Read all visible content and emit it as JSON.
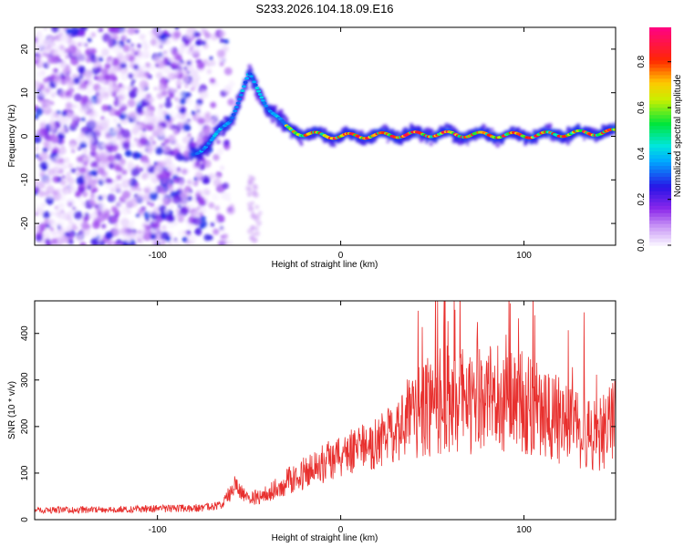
{
  "title": "S233.2026.104.18.09.E16",
  "chart_data": [
    {
      "type": "heatmap",
      "xlabel": "Height of straight line (km)",
      "ylabel": "Frequency (Hz)",
      "xlim": [
        -167,
        150
      ],
      "ylim": [
        -25,
        25
      ],
      "x_ticks": [
        -100,
        0,
        100
      ],
      "y_ticks": [
        -20,
        -10,
        0,
        10,
        20
      ],
      "colorbar": {
        "label": "Normalized spectral amplitude",
        "range": [
          0,
          0.95
        ],
        "ticks": [
          0.0,
          0.2,
          0.4,
          0.6,
          0.8
        ]
      },
      "ridge": [
        {
          "x": -80,
          "y": -4
        },
        {
          "x": -70,
          "y": -1
        },
        {
          "x": -60,
          "y": 4
        },
        {
          "x": -50,
          "y": 14
        },
        {
          "x": -40,
          "y": 7
        },
        {
          "x": -30,
          "y": 2
        },
        {
          "x": -20,
          "y": 0.5
        },
        {
          "x": 0,
          "y": 0
        },
        {
          "x": 50,
          "y": 0.5
        },
        {
          "x": 100,
          "y": 0.2
        },
        {
          "x": 150,
          "y": 1
        }
      ]
    },
    {
      "type": "line",
      "xlabel": "Height of straight line (km)",
      "ylabel": "SNR (10 * v/v)",
      "xlim": [
        -167,
        150
      ],
      "ylim": [
        0,
        470
      ],
      "x_ticks": [
        -100,
        0,
        100
      ],
      "y_ticks": [
        0,
        100,
        200,
        300,
        400
      ],
      "color": "#e8302e",
      "series": [
        {
          "name": "",
          "x": [
            -167,
            -120,
            -80,
            -65,
            -58,
            -50,
            -40,
            -30,
            -20,
            -10,
            0,
            10,
            20,
            30,
            40,
            50,
            60,
            70,
            80,
            90,
            100,
            110,
            120,
            130,
            140,
            150
          ],
          "y": [
            20,
            22,
            25,
            30,
            70,
            45,
            55,
            80,
            100,
            120,
            135,
            150,
            170,
            190,
            220,
            250,
            260,
            250,
            270,
            260,
            250,
            230,
            210,
            200,
            180,
            220
          ]
        }
      ]
    }
  ]
}
